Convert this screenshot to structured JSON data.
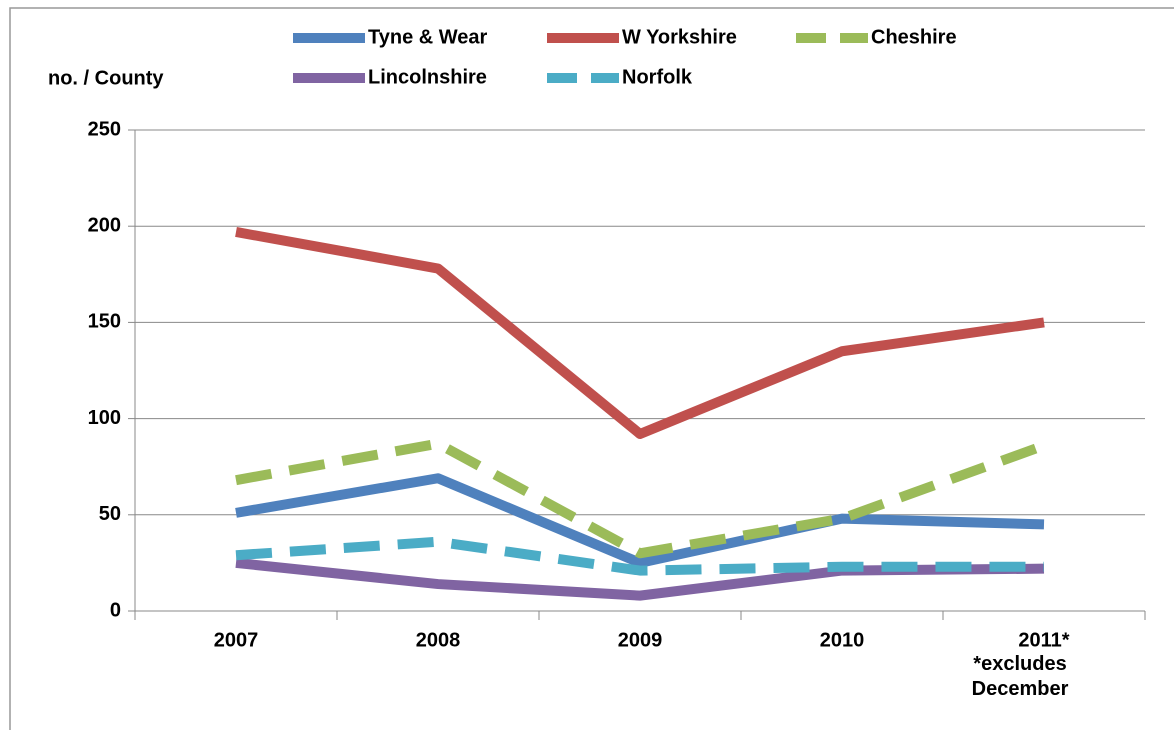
{
  "chart_data": {
    "type": "line",
    "y_label": "no. / County",
    "annotation": "*excludes December",
    "categories": [
      "2007",
      "2008",
      "2009",
      "2010",
      "2011*"
    ],
    "series": [
      {
        "name": "Tyne & Wear",
        "color": "#4f81bd",
        "dashed": false,
        "values": [
          51,
          69,
          25,
          48,
          45
        ]
      },
      {
        "name": "W Yorkshire",
        "color": "#c0504d",
        "dashed": false,
        "values": [
          197,
          178,
          92,
          135,
          150
        ]
      },
      {
        "name": "Cheshire",
        "color": "#9bbb59",
        "dashed": true,
        "values": [
          68,
          87,
          30,
          48,
          86
        ]
      },
      {
        "name": "Lincolnshire",
        "color": "#8064a2",
        "dashed": false,
        "values": [
          25,
          14,
          8,
          21,
          22
        ]
      },
      {
        "name": "Norfolk",
        "color": "#4bacc6",
        "dashed": true,
        "values": [
          29,
          36,
          21,
          23,
          23
        ]
      }
    ],
    "ylim": [
      0,
      250
    ],
    "yticks": [
      0,
      50,
      100,
      150,
      200,
      250
    ],
    "grid": true
  }
}
